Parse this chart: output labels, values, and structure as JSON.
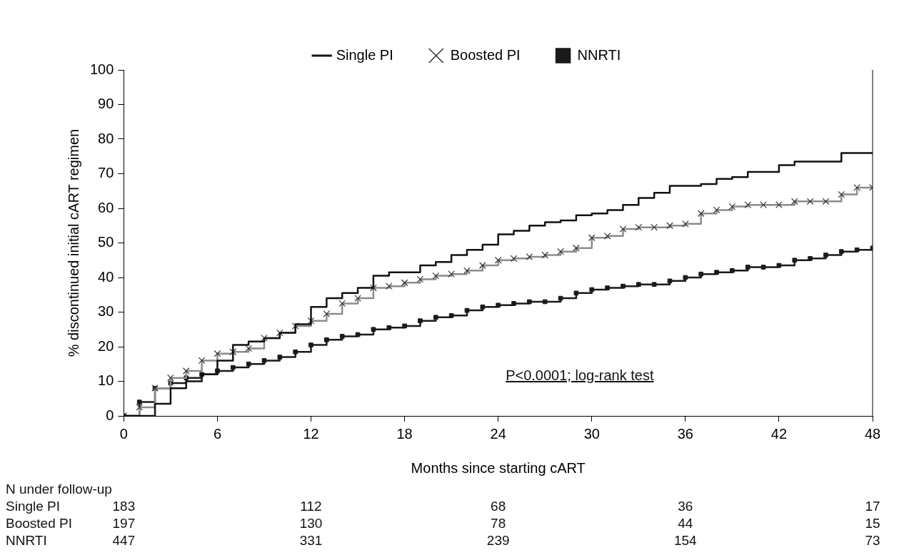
{
  "chart_data": {
    "type": "step",
    "xlabel": "Months since starting cART",
    "ylabel": "% discontinued initial cART regimen",
    "x": [
      0,
      1,
      2,
      3,
      4,
      5,
      6,
      7,
      8,
      9,
      10,
      11,
      12,
      13,
      14,
      15,
      16,
      17,
      18,
      19,
      20,
      21,
      22,
      23,
      24,
      25,
      26,
      27,
      28,
      29,
      30,
      31,
      32,
      33,
      34,
      35,
      36,
      37,
      38,
      39,
      40,
      41,
      42,
      43,
      44,
      45,
      46,
      47,
      48
    ],
    "series": [
      {
        "name": "Single PI",
        "color": "#111111",
        "marker": "none",
        "values": [
          0,
          0,
          3.5,
          8,
          10,
          12,
          16,
          20.5,
          21.5,
          22.5,
          24,
          26.5,
          31.5,
          34,
          35.5,
          37,
          40.5,
          41.5,
          41.5,
          43.5,
          44.5,
          46.5,
          48,
          49.5,
          52.5,
          53.5,
          55,
          56,
          56.5,
          58,
          58.5,
          59.5,
          61,
          63,
          64.5,
          66.5,
          66.5,
          67,
          68.5,
          69,
          70.5,
          70.5,
          72.5,
          73.5,
          73.5,
          73.5,
          76,
          76,
          76
        ]
      },
      {
        "name": "Boosted PI",
        "color": "#8c8c8c",
        "marker": "cross",
        "values": [
          0,
          2.5,
          8,
          11,
          13,
          16,
          18,
          18.5,
          19.5,
          22.5,
          24,
          26,
          27.5,
          29.5,
          32.5,
          34,
          37,
          37.5,
          38.5,
          39.5,
          40.5,
          41,
          42,
          43.5,
          45,
          45.5,
          46,
          46.5,
          47.5,
          48.5,
          51.5,
          52,
          54,
          54.5,
          54.5,
          55,
          55.5,
          58.5,
          59.5,
          60.5,
          61,
          61,
          61,
          62,
          62,
          62,
          64,
          66,
          66
        ]
      },
      {
        "name": "NNRTI",
        "color": "#1a1a1a",
        "marker": "square",
        "values": [
          0,
          4,
          8,
          9.5,
          11,
          12,
          13,
          14,
          15,
          16,
          17,
          18.5,
          20.5,
          22,
          23,
          23.5,
          25,
          25.5,
          26,
          27.5,
          28.5,
          29,
          30.5,
          31.5,
          32,
          32.5,
          33,
          33,
          34,
          35.5,
          36.5,
          37,
          37.5,
          38,
          38,
          39,
          40,
          41,
          41.5,
          42,
          43,
          43,
          43.5,
          45,
          45.5,
          46.5,
          47.5,
          48,
          48.5
        ]
      }
    ],
    "xlim": [
      0,
      48
    ],
    "xticks": [
      0,
      6,
      12,
      18,
      24,
      30,
      36,
      42,
      48
    ],
    "ylim": [
      0,
      100
    ],
    "yticks": [
      0,
      10,
      20,
      30,
      40,
      50,
      60,
      70,
      80,
      90,
      100
    ],
    "grid": false,
    "legend": "top",
    "annotations": [
      "P<0.0001; log-rank test",
      "N under follow-up",
      "Single PI",
      "183",
      "112",
      "68",
      "36",
      "17",
      "Boosted PI",
      "197",
      "130",
      "78",
      "44",
      "15",
      "NNRTI",
      "447",
      "331",
      "239",
      "154",
      "73"
    ]
  }
}
